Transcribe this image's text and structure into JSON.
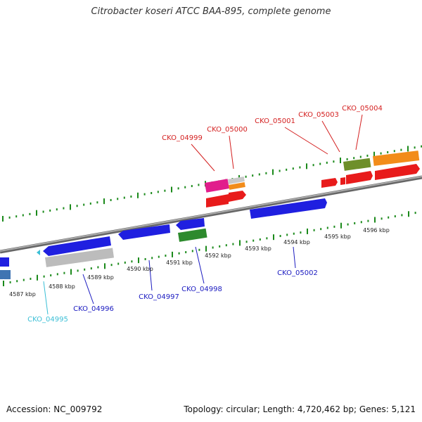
{
  "title": "Citrobacter koseri ATCC BAA-895, complete genome",
  "accession": "Accession: NC_009792",
  "summary": "Topology: circular; Length: 4,720,462 bp; Genes: 5,121",
  "colors": {
    "red_label": "#d42020",
    "blue_label": "#1a1ac0",
    "cyan_label": "#3bbfd6",
    "tick": "#1b8a1b",
    "backbone": "#888888",
    "blue": "#1f1fe0",
    "gray": "#bcbcbc",
    "steelblue": "#3f74b2",
    "green": "#2d8a2d",
    "olive": "#6e8f2a",
    "orange": "#f28c1a",
    "red": "#e81b1b",
    "magenta": "#e11d8c",
    "lightgray": "#c8c8c8",
    "cyan": "#3bbfd6"
  },
  "kbp_labels": [
    "4587 kbp",
    "4588 kbp",
    "4589 kbp",
    "4590 kbp",
    "4591 kbp",
    "4592 kbp",
    "4593 kbp",
    "4594 kbp",
    "4595 kbp",
    "4596 kbp"
  ],
  "gene_labels": {
    "top": [
      "CKO_04999",
      "CKO_05000",
      "CKO_05001",
      "CKO_05003",
      "CKO_05004"
    ],
    "bottom": [
      "CKO_04995",
      "CKO_04996",
      "CKO_04997",
      "CKO_04998",
      "CKO_05002"
    ]
  }
}
